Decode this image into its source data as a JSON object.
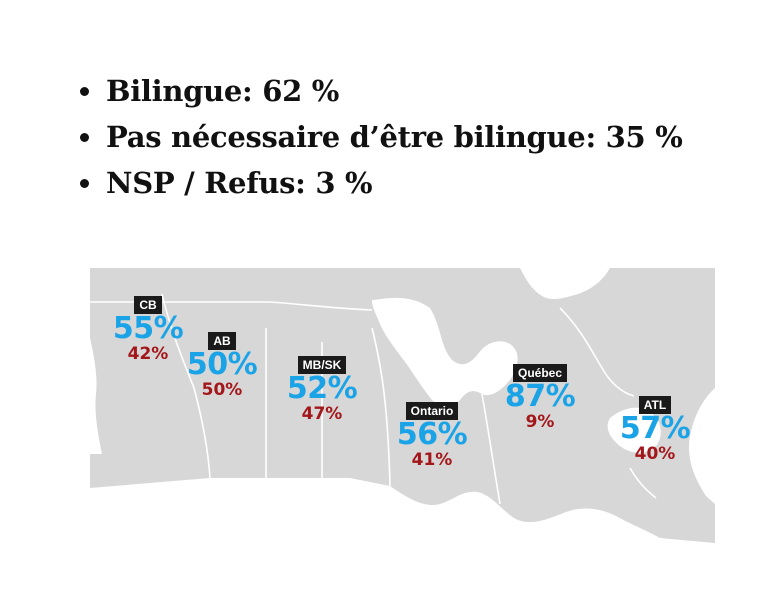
{
  "summary": [
    {
      "label": "Bilingue: 62 %"
    },
    {
      "label": "Pas nécessaire d’être bilingue: 35 %"
    },
    {
      "label": "NSP / Refus: 3 %"
    }
  ],
  "map": {
    "colors": {
      "land": "#d7d7d7",
      "border": "#ffffff",
      "water": "#ffffff",
      "tag_bg": "#1a1a1a",
      "bilingual": "#1aa3e6",
      "not_necessary": "#a3161a"
    },
    "regions": [
      {
        "name": "CB",
        "bilingual": "55%",
        "not_necessary": "42%"
      },
      {
        "name": "AB",
        "bilingual": "50%",
        "not_necessary": "50%"
      },
      {
        "name": "MB/SK",
        "bilingual": "52%",
        "not_necessary": "47%"
      },
      {
        "name": "Ontario",
        "bilingual": "56%",
        "not_necessary": "41%"
      },
      {
        "name": "Québec",
        "bilingual": "87%",
        "not_necessary": "9%"
      },
      {
        "name": "ATL",
        "bilingual": "57%",
        "not_necessary": "40%"
      }
    ]
  }
}
